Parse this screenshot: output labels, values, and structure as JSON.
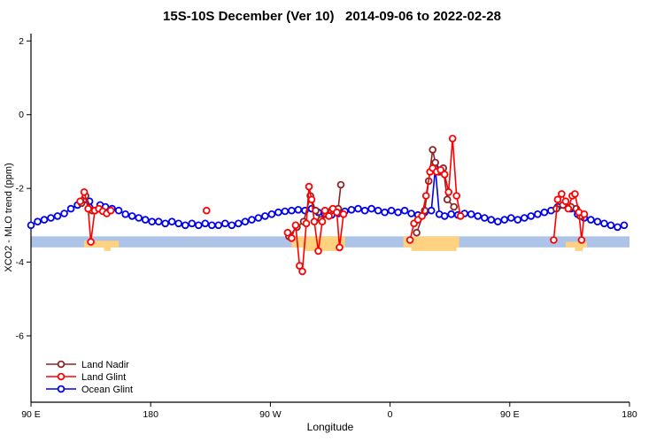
{
  "title": "15S-10S December (Ver 10)   2014-09-06 to 2022-02-28",
  "chart_data": {
    "type": "scatter",
    "title": "15S-10S December (Ver 10)   2014-09-06 to 2022-02-28",
    "xlabel": "Longitude",
    "ylabel": "XCO2 - MLO trend (ppm)",
    "xlim": [
      0,
      450
    ],
    "ylim": [
      -7.8,
      2.2
    ],
    "grid": false,
    "x_ticks": [
      {
        "pos": 0,
        "label": "90 E"
      },
      {
        "pos": 90,
        "label": "180"
      },
      {
        "pos": 180,
        "label": "90 W"
      },
      {
        "pos": 270,
        "label": "0"
      },
      {
        "pos": 360,
        "label": "90 E"
      },
      {
        "pos": 450,
        "label": "180"
      }
    ],
    "y_ticks": [
      {
        "pos": 2,
        "label": "2"
      },
      {
        "pos": 0,
        "label": "0"
      },
      {
        "pos": -2,
        "label": "-2"
      },
      {
        "pos": -4,
        "label": "-4"
      },
      {
        "pos": -6,
        "label": "-6"
      }
    ],
    "band": {
      "y_top": -3.3,
      "y_bottom": -3.6,
      "ocean_color": "#aec3e8",
      "land_color": "#ffd27f",
      "land_segments": [
        [
          40,
          66,
          0.6
        ],
        [
          196,
          236,
          1.0
        ],
        [
          280,
          322,
          1.0
        ],
        [
          402,
          418,
          0.5
        ]
      ],
      "sub_ticks": [
        [
          55,
          60
        ],
        [
          206,
          233
        ],
        [
          286,
          320
        ],
        [
          409,
          415
        ]
      ]
    },
    "legend": {
      "position": "bottom-left",
      "items": [
        "Land Nadir",
        "Land Glint",
        "Ocean Glint"
      ]
    },
    "series": [
      {
        "name": "Land Nadir",
        "color": "#8b2525",
        "segments": [
          [
            [
              38,
              -2.4
            ],
            [
              41,
              -2.2
            ],
            [
              46,
              -2.6
            ]
          ],
          [
            [
              194,
              -3.3
            ],
            [
              200,
              -3.05
            ],
            [
              205,
              -2.9
            ],
            [
              210,
              -2.2
            ],
            [
              214,
              -2.6
            ],
            [
              218,
              -2.85
            ],
            [
              226,
              -2.6
            ],
            [
              231,
              -2.55
            ],
            [
              233,
              -1.9
            ]
          ],
          [
            [
              290,
              -3.2
            ],
            [
              296,
              -2.6
            ],
            [
              299,
              -1.8
            ],
            [
              302,
              -0.95
            ],
            [
              304,
              -1.3
            ],
            [
              307,
              -1.55
            ],
            [
              310,
              -1.45
            ],
            [
              313,
              -2.3
            ],
            [
              318,
              -2.5
            ]
          ],
          [
            [
              395,
              -2.55
            ],
            [
              400,
              -2.45
            ],
            [
              406,
              -2.5
            ],
            [
              410,
              -2.55
            ],
            [
              413,
              -2.75
            ]
          ]
        ]
      },
      {
        "name": "Land Glint",
        "color": "#ff0000",
        "segments": [
          [
            [
              37,
              -2.35
            ],
            [
              40,
              -2.1
            ],
            [
              43,
              -2.55
            ],
            [
              45,
              -3.45
            ],
            [
              48,
              -2.6
            ],
            [
              51,
              -2.55
            ],
            [
              54,
              -2.62
            ],
            [
              57,
              -2.68
            ],
            [
              60,
              -2.6
            ]
          ],
          [
            [
              132,
              -2.6
            ]
          ],
          [
            [
              193,
              -3.2
            ],
            [
              196,
              -3.35
            ],
            [
              199,
              -3.0
            ],
            [
              202,
              -4.1
            ],
            [
              204,
              -4.25
            ],
            [
              207,
              -2.95
            ],
            [
              209,
              -1.95
            ],
            [
              211,
              -2.3
            ],
            [
              213,
              -2.9
            ],
            [
              216,
              -3.7
            ],
            [
              219,
              -2.9
            ],
            [
              221,
              -2.6
            ],
            [
              224,
              -2.75
            ],
            [
              227,
              -2.55
            ],
            [
              230,
              -2.65
            ],
            [
              232,
              -3.6
            ],
            [
              235,
              -2.7
            ]
          ],
          [
            [
              285,
              -3.4
            ],
            [
              288,
              -2.95
            ],
            [
              291,
              -2.85
            ],
            [
              294,
              -2.75
            ],
            [
              297,
              -2.2
            ],
            [
              300,
              -1.55
            ],
            [
              302,
              -1.45
            ],
            [
              305,
              -1.55
            ],
            [
              308,
              -1.5
            ],
            [
              311,
              -1.62
            ],
            [
              314,
              -2.1
            ],
            [
              317,
              -0.65
            ],
            [
              320,
              -2.2
            ],
            [
              323,
              -2.75
            ]
          ],
          [
            [
              393,
              -3.4
            ],
            [
              396,
              -2.3
            ],
            [
              399,
              -2.15
            ],
            [
              402,
              -2.35
            ],
            [
              404,
              -2.55
            ],
            [
              407,
              -2.2
            ],
            [
              409,
              -2.15
            ],
            [
              412,
              -2.65
            ],
            [
              414,
              -3.4
            ],
            [
              416,
              -2.7
            ]
          ]
        ]
      },
      {
        "name": "Ocean Glint",
        "color": "#0000ee",
        "segments": [
          [
            [
              0,
              -3.0
            ],
            [
              5,
              -2.9
            ],
            [
              10,
              -2.85
            ],
            [
              15,
              -2.8
            ],
            [
              20,
              -2.75
            ],
            [
              25,
              -2.68
            ],
            [
              30,
              -2.55
            ],
            [
              35,
              -2.45
            ],
            [
              40,
              -2.3
            ],
            [
              44,
              -2.35
            ],
            [
              48,
              -2.6
            ],
            [
              52,
              -2.45
            ],
            [
              56,
              -2.5
            ],
            [
              61,
              -2.55
            ],
            [
              66,
              -2.6
            ],
            [
              71,
              -2.7
            ],
            [
              76,
              -2.75
            ],
            [
              81,
              -2.8
            ],
            [
              86,
              -2.85
            ],
            [
              91,
              -2.9
            ],
            [
              96,
              -2.9
            ],
            [
              101,
              -2.95
            ],
            [
              106,
              -2.9
            ],
            [
              111,
              -2.95
            ],
            [
              116,
              -3.0
            ],
            [
              121,
              -2.95
            ],
            [
              126,
              -3.0
            ],
            [
              131,
              -2.95
            ],
            [
              136,
              -3.0
            ],
            [
              141,
              -3.0
            ],
            [
              146,
              -2.95
            ],
            [
              151,
              -3.0
            ],
            [
              156,
              -2.95
            ],
            [
              161,
              -2.9
            ],
            [
              166,
              -2.85
            ],
            [
              171,
              -2.8
            ],
            [
              176,
              -2.75
            ],
            [
              181,
              -2.7
            ],
            [
              186,
              -2.65
            ],
            [
              191,
              -2.62
            ],
            [
              196,
              -2.6
            ],
            [
              201,
              -2.58
            ],
            [
              206,
              -2.6
            ],
            [
              211,
              -2.55
            ],
            [
              216,
              -2.65
            ],
            [
              221,
              -2.7
            ],
            [
              226,
              -2.72
            ],
            [
              231,
              -2.68
            ],
            [
              236,
              -2.62
            ],
            [
              241,
              -2.58
            ],
            [
              246,
              -2.55
            ],
            [
              251,
              -2.6
            ],
            [
              256,
              -2.55
            ],
            [
              261,
              -2.6
            ],
            [
              266,
              -2.65
            ],
            [
              271,
              -2.6
            ],
            [
              276,
              -2.65
            ],
            [
              281,
              -2.6
            ],
            [
              286,
              -2.68
            ],
            [
              291,
              -2.72
            ],
            [
              296,
              -2.65
            ],
            [
              301,
              -2.6
            ],
            [
              304,
              -1.45
            ],
            [
              307,
              -2.7
            ],
            [
              311,
              -2.75
            ],
            [
              316,
              -2.7
            ],
            [
              321,
              -2.72
            ],
            [
              326,
              -2.68
            ],
            [
              331,
              -2.7
            ],
            [
              336,
              -2.75
            ],
            [
              341,
              -2.8
            ],
            [
              346,
              -2.85
            ],
            [
              351,
              -2.9
            ],
            [
              356,
              -2.85
            ],
            [
              361,
              -2.8
            ],
            [
              366,
              -2.85
            ],
            [
              371,
              -2.8
            ],
            [
              376,
              -2.75
            ],
            [
              381,
              -2.7
            ],
            [
              386,
              -2.65
            ],
            [
              391,
              -2.6
            ],
            [
              396,
              -2.5
            ],
            [
              401,
              -2.45
            ],
            [
              406,
              -2.55
            ],
            [
              411,
              -2.7
            ],
            [
              416,
              -2.8
            ],
            [
              421,
              -2.85
            ],
            [
              426,
              -2.9
            ],
            [
              431,
              -2.95
            ],
            [
              436,
              -3.0
            ],
            [
              441,
              -3.05
            ],
            [
              446,
              -3.0
            ]
          ]
        ]
      }
    ]
  }
}
